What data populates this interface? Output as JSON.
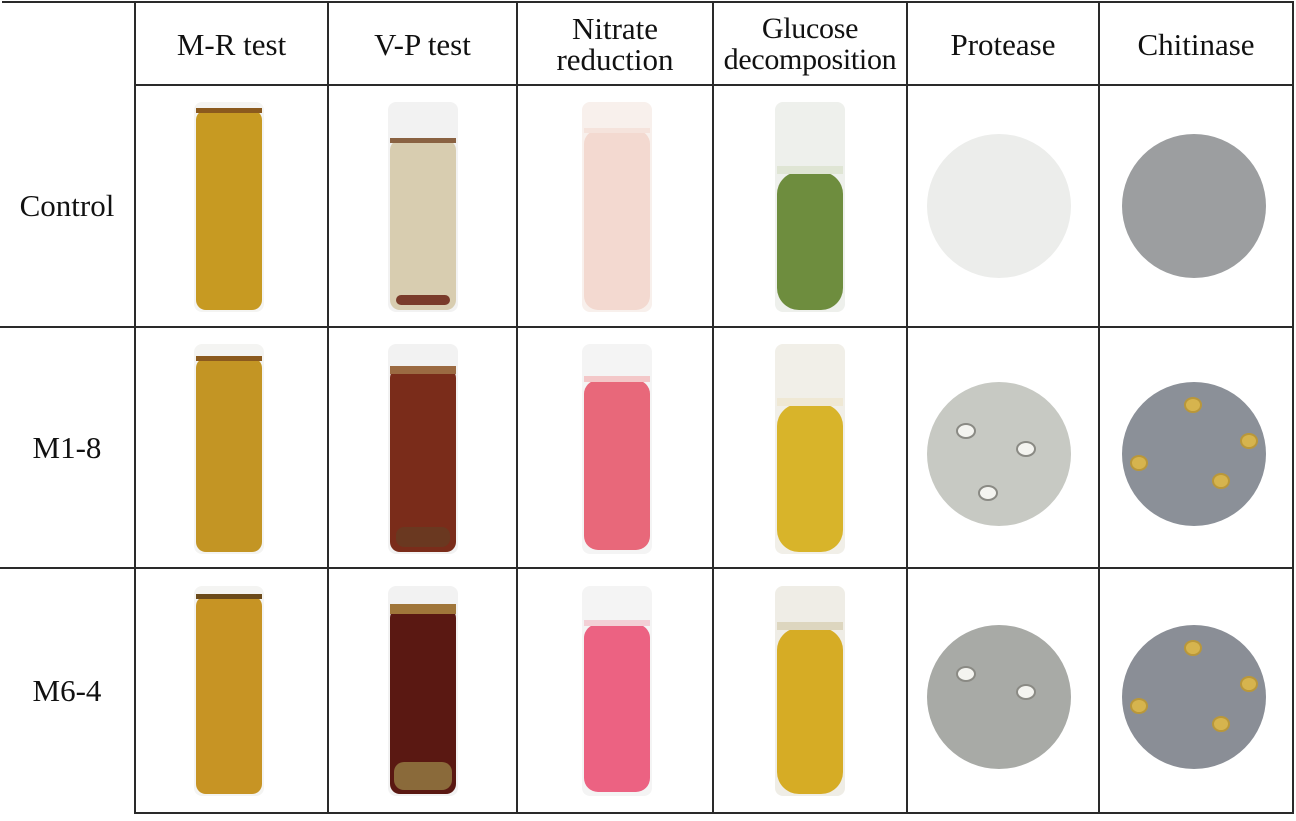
{
  "headers": {
    "mr": "M-R test",
    "vp": "V-P test",
    "nitrate": "Nitrate\nreduction",
    "glucose": "Glucose\ndecomposition",
    "protease": "Protease",
    "chitinase": "Chitinase"
  },
  "rows": [
    {
      "label": "Control",
      "tubes": {
        "mr": {
          "liquid": "#c79a22",
          "top": "#8b5a1e"
        },
        "vp": {
          "liquid": "#d8cdb0",
          "top": "#8a6242",
          "bottom": "#7a3b2a"
        },
        "nitrate": {
          "liquid": "#f3d9d0",
          "top": "#f5e3dc"
        },
        "glucose": {
          "liquid": "#6e8d3e",
          "top": "#dfe5d4"
        }
      },
      "plates": {
        "protease": {
          "color": "#ecedeb",
          "colonies": 0
        },
        "chitinase": {
          "color": "#9c9ea0",
          "colonies": 0
        }
      }
    },
    {
      "label": "M1-8",
      "tubes": {
        "mr": {
          "liquid": "#c39524",
          "top": "#8b5a1e"
        },
        "vp": {
          "liquid": "#7a2c1a",
          "top": "#9b6a42",
          "bottom": "#6a3820"
        },
        "nitrate": {
          "liquid": "#e8687a",
          "top": "#f3c7c8"
        },
        "glucose": {
          "liquid": "#d8b42a",
          "top": "#efe8d4"
        }
      },
      "plates": {
        "protease": {
          "color": "#c7c9c3",
          "colonies": 3
        },
        "chitinase": {
          "color": "#8b9098",
          "colonies": 4
        }
      }
    },
    {
      "label": "M6-4",
      "tubes": {
        "mr": {
          "liquid": "#c79424",
          "top": "#6b4a1a"
        },
        "vp": {
          "liquid": "#5a1812",
          "top": "#a0763a",
          "bottom": "#8a6a3a"
        },
        "nitrate": {
          "liquid": "#ec6282",
          "top": "#f3d0d6"
        },
        "glucose": {
          "liquid": "#d6ac25",
          "top": "#ddd6bf"
        }
      },
      "plates": {
        "protease": {
          "color": "#a8aaa6",
          "colonies": 2
        },
        "chitinase": {
          "color": "#8a8e96",
          "colonies": 4
        }
      }
    }
  ]
}
